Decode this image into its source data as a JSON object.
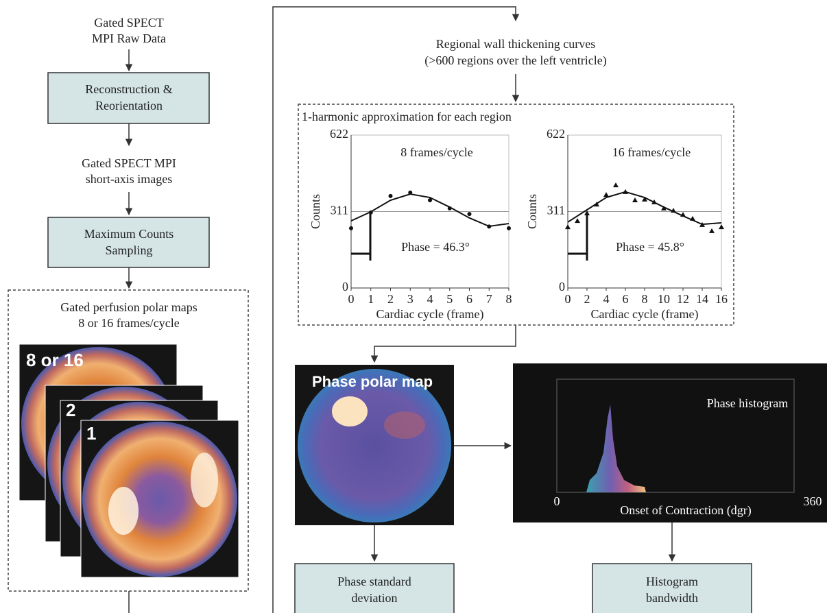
{
  "left": {
    "raw_data": [
      "Gated SPECT",
      "MPI Raw Data"
    ],
    "step1": [
      "Reconstruction &",
      "Reorientation"
    ],
    "short_axis": [
      "Gated SPECT MPI",
      "short-axis images"
    ],
    "step2": [
      "Maximum Counts",
      "Sampling"
    ],
    "polar_maps": {
      "title": [
        "Gated perfusion polar maps",
        "8 or 16 frames/cycle"
      ],
      "frame_labels": [
        "8 or 16",
        "2",
        "1"
      ]
    }
  },
  "right": {
    "curves_title": [
      "Regional wall thickening curves",
      "(>600 regions over the left ventricle)"
    ],
    "harmonic": {
      "title": "1-harmonic approximation for each region",
      "charts": [
        {
          "title": "8 frames/cycle",
          "annotation": "Phase = 46.3°",
          "ylabel": "Counts",
          "xlabel": "Cardiac cycle (frame)",
          "xlim": [
            0,
            8
          ],
          "xticks": [
            0,
            1,
            2,
            3,
            4,
            5,
            6,
            7,
            8
          ],
          "ylim": [
            0,
            622
          ],
          "yticks": [
            0,
            311,
            622
          ],
          "marker": "circle",
          "points": {
            "x": [
              0,
              1,
              2,
              3,
              4,
              5,
              6,
              7,
              8
            ],
            "y": [
              243,
              307,
              374,
              388,
              357,
              324,
              301,
              250,
              243
            ]
          },
          "fit": {
            "x": [
              0,
              1,
              2,
              3,
              4,
              5,
              6,
              7,
              8
            ],
            "y": [
              273,
              310,
              357,
              382,
              368,
              329,
              285,
              251,
              262
            ]
          }
        },
        {
          "title": "16 frames/cycle",
          "annotation": "Phase = 45.8°",
          "ylabel": "Counts",
          "xlabel": "Cardiac cycle (frame)",
          "xlim": [
            0,
            16
          ],
          "xticks": [
            0,
            2,
            4,
            6,
            8,
            10,
            12,
            14,
            16
          ],
          "ylim": [
            0,
            622
          ],
          "yticks": [
            0,
            311,
            622
          ],
          "marker": "triangle",
          "points": {
            "x": [
              0,
              1,
              2,
              3,
              4,
              5,
              6,
              7,
              8,
              9,
              10,
              11,
              12,
              13,
              14,
              15,
              16
            ],
            "y": [
              248,
              273,
              304,
              340,
              379,
              418,
              391,
              357,
              360,
              349,
              324,
              315,
              298,
              282,
              257,
              232,
              248
            ]
          },
          "fit": {
            "x": [
              0,
              2,
              4,
              6,
              8,
              10,
              12,
              14,
              16
            ],
            "y": [
              268,
              318,
              368,
              391,
              368,
              329,
              293,
              259,
              265
            ]
          }
        }
      ]
    },
    "phase_map": {
      "label": "Phase polar map"
    },
    "histogram": {
      "title": "Phase histogram",
      "xticks": [
        0,
        360
      ],
      "xlabel": "Onset of Contraction (dgr)"
    },
    "outputs": [
      [
        "Phase standard",
        "deviation"
      ],
      [
        "Histogram",
        "bandwidth"
      ]
    ]
  }
}
